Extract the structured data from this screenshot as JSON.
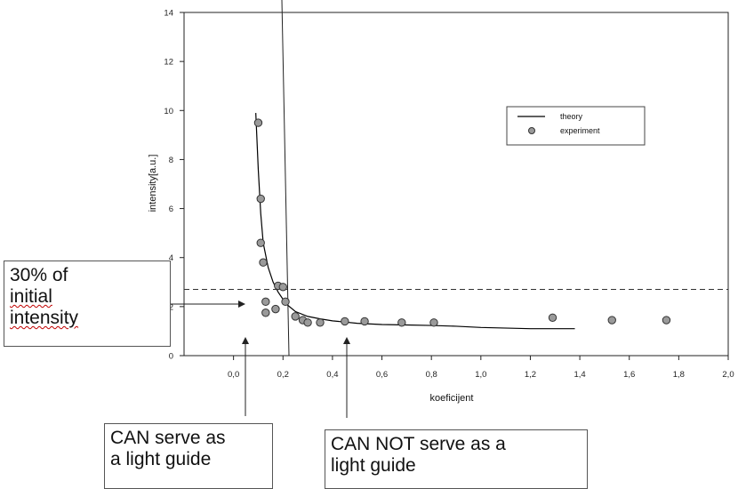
{
  "chart_data": {
    "type": "scatter",
    "xlabel": "koeficijent",
    "ylabel": "intensity[a.u.]",
    "xlim": [
      -0.2,
      2.0
    ],
    "ylim": [
      0,
      14
    ],
    "x_ticks": [
      "0,0",
      "0,2",
      "0,4",
      "0,6",
      "0,8",
      "1,0",
      "1,2",
      "1,4",
      "1,6",
      "1,8",
      "2,0"
    ],
    "y_ticks": [
      "0",
      "2",
      "4",
      "6",
      "8",
      "10",
      "12",
      "14"
    ],
    "legend_position": "top-right",
    "series": [
      {
        "name": "theory",
        "kind": "line",
        "x": [
          0.09,
          0.1,
          0.11,
          0.12,
          0.14,
          0.16,
          0.18,
          0.2,
          0.22,
          0.25,
          0.3,
          0.35,
          0.4,
          0.5,
          0.6,
          0.7,
          0.8,
          0.9,
          1.0,
          1.2,
          1.38
        ],
        "y": [
          9.9,
          7.6,
          5.8,
          4.6,
          3.6,
          3.0,
          2.6,
          2.3,
          2.05,
          1.8,
          1.6,
          1.5,
          1.42,
          1.32,
          1.27,
          1.25,
          1.23,
          1.2,
          1.15,
          1.1,
          1.1
        ]
      },
      {
        "name": "experiment",
        "kind": "points",
        "x": [
          0.1,
          0.11,
          0.11,
          0.12,
          0.13,
          0.13,
          0.17,
          0.18,
          0.2,
          0.21,
          0.25,
          0.28,
          0.3,
          0.35,
          0.45,
          0.53,
          0.68,
          0.81,
          1.29,
          1.53,
          1.75
        ],
        "y": [
          9.5,
          6.4,
          4.6,
          3.8,
          2.2,
          1.75,
          1.9,
          2.85,
          2.8,
          2.2,
          1.6,
          1.45,
          1.35,
          1.35,
          1.4,
          1.4,
          1.35,
          1.35,
          1.55,
          1.45,
          1.45
        ]
      }
    ],
    "threshold_y": 2.7,
    "critical_x": 0.18,
    "grid": false
  },
  "annotations": {
    "threshold_box": [
      "30% of",
      "initial",
      "intensity"
    ],
    "can_box": [
      "CAN serve as",
      "a light guide"
    ],
    "cannot_box": [
      "CAN NOT serve as a",
      "light guide"
    ]
  },
  "colors": {
    "marker_fill": "#9a9a9a",
    "marker_stroke": "#333333",
    "line": "#000000",
    "threshold_line": "#333333"
  }
}
